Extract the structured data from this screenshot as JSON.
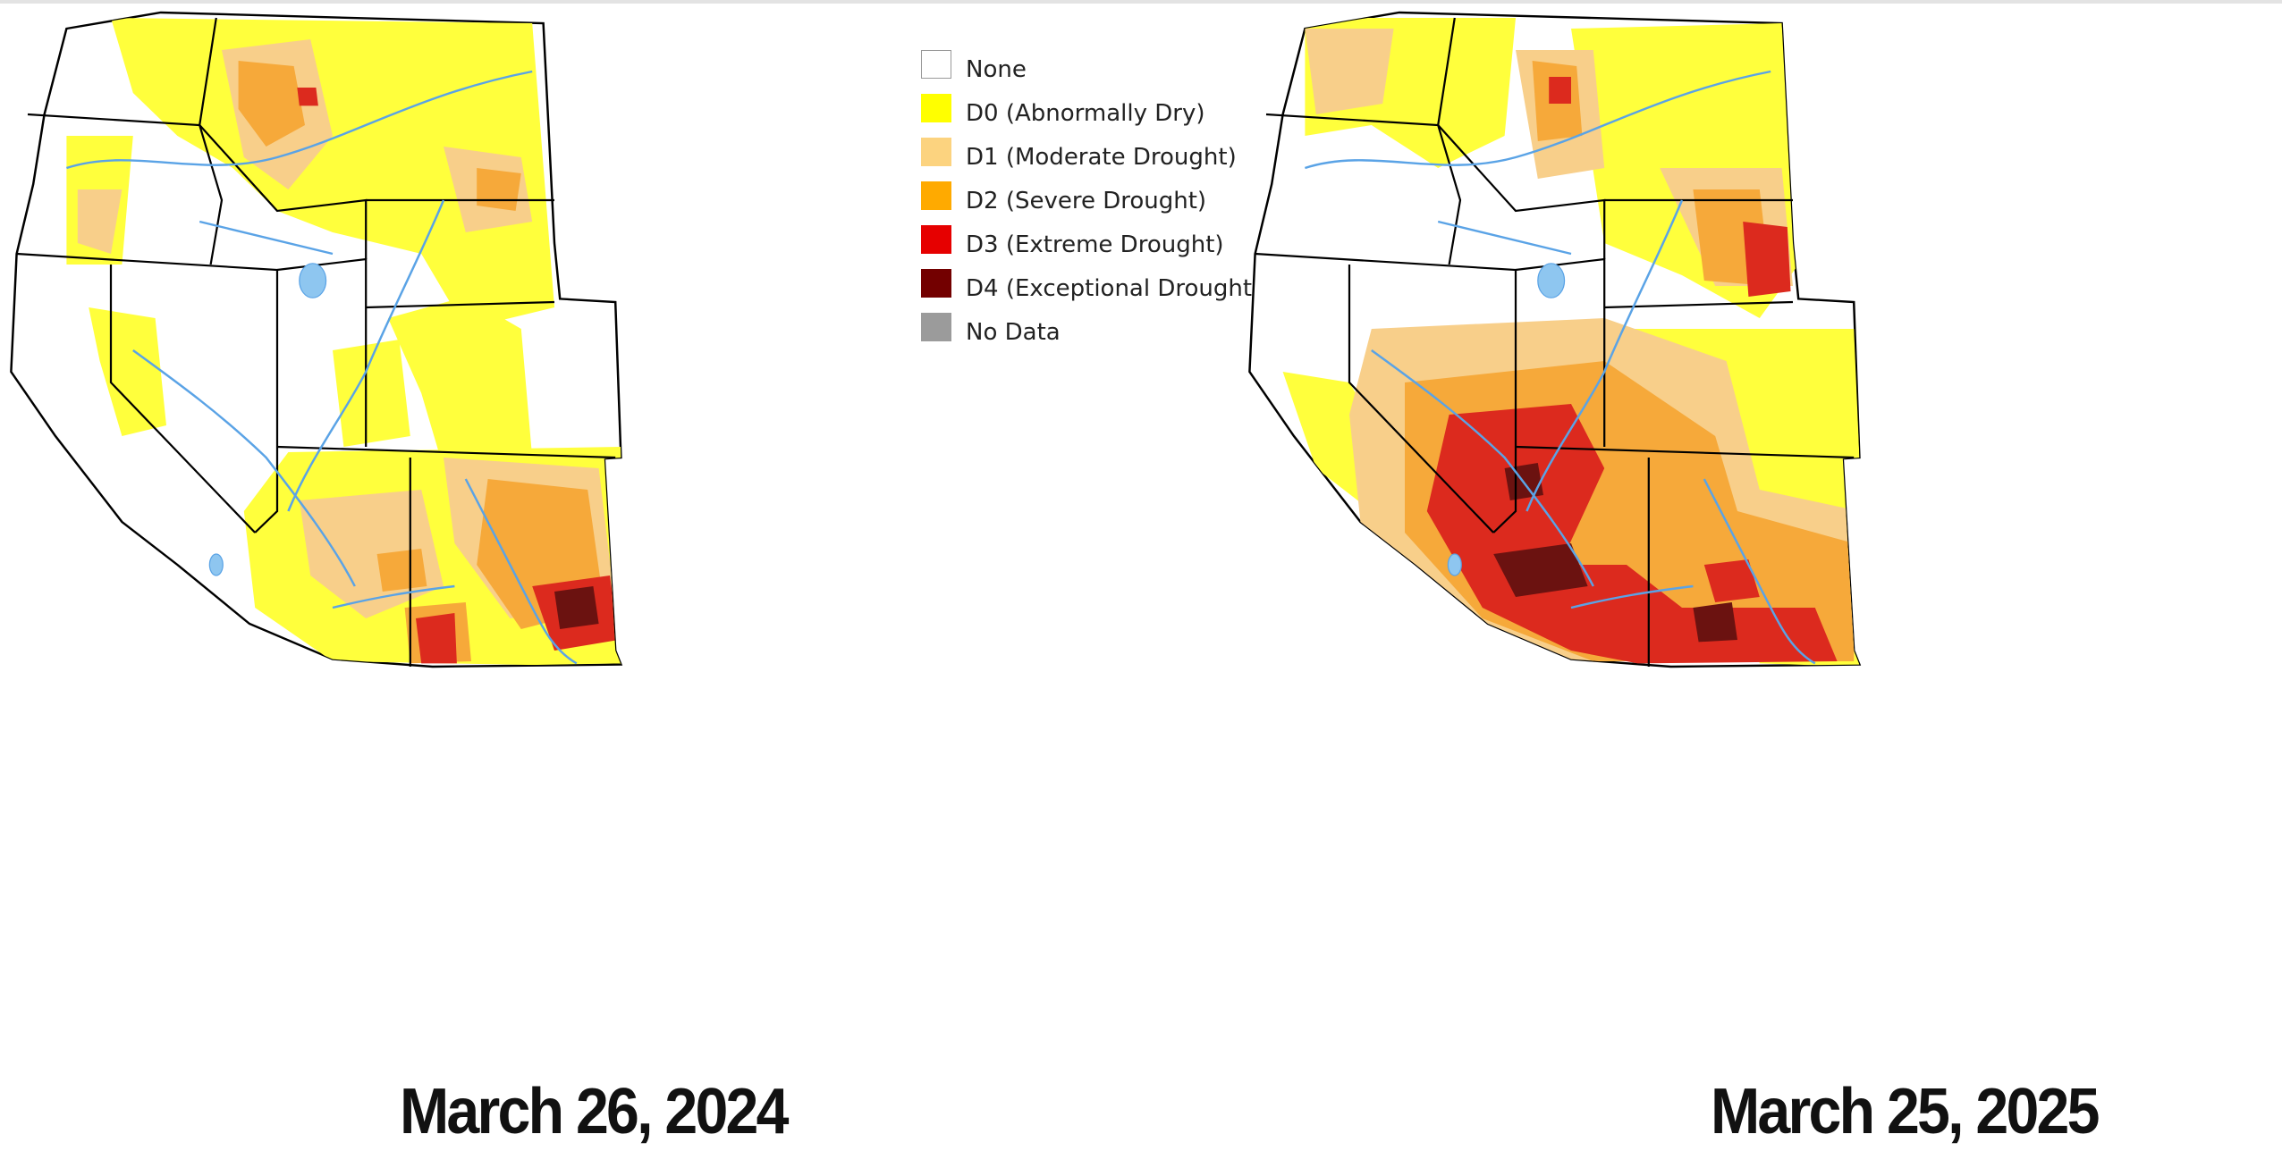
{
  "legend": {
    "items": [
      {
        "label": "None",
        "color": "#ffffff"
      },
      {
        "label": "D0 (Abnormally Dry)",
        "color": "#ffff00"
      },
      {
        "label": "D1 (Moderate Drought)",
        "color": "#fcd37f"
      },
      {
        "label": "D2 (Severe Drought)",
        "color": "#ffaa00"
      },
      {
        "label": "D3 (Extreme Drought)",
        "color": "#e60000"
      },
      {
        "label": "D4 (Exceptional Drought)",
        "color": "#730000"
      },
      {
        "label": "No Data",
        "color": "#9b9b9b"
      }
    ]
  },
  "maps": [
    {
      "caption": "March 26, 2024"
    },
    {
      "caption": "March 25, 2025"
    }
  ],
  "colors": {
    "d0": "#ffff3c",
    "d1": "#f8cf8a",
    "d2": "#f6a93a",
    "d3": "#dc2a1e",
    "d4": "#6b1210",
    "river": "#5aa3e6",
    "border": "#000000",
    "lake": "#8ec6f0"
  }
}
